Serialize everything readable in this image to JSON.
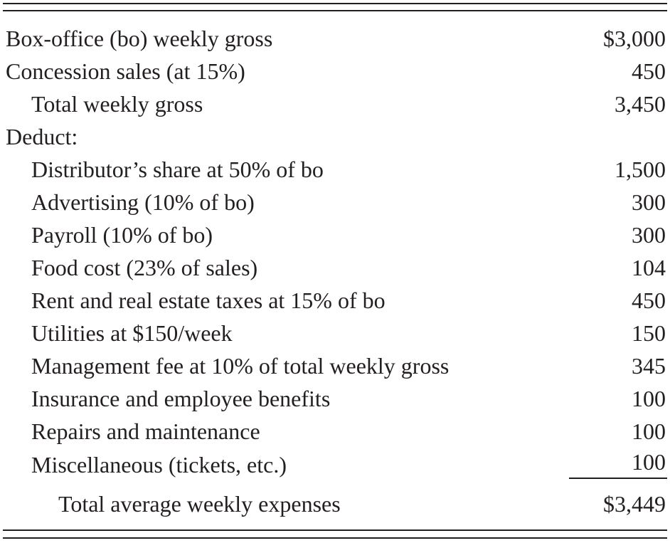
{
  "table": {
    "rows": [
      {
        "label": "Box-office (bo) weekly gross",
        "value": "$3,000"
      },
      {
        "label": "Concession sales (at 15%)",
        "value": "450"
      },
      {
        "label": "Total weekly gross",
        "value": "3,450"
      },
      {
        "label": "Deduct:",
        "value": ""
      },
      {
        "label": "Distributor’s share at 50% of bo",
        "value": "1,500"
      },
      {
        "label": "Advertising (10% of bo)",
        "value": "300"
      },
      {
        "label": "Payroll (10% of bo)",
        "value": "300"
      },
      {
        "label": "Food cost (23% of sales)",
        "value": "104"
      },
      {
        "label": "Rent and real estate taxes at 15% of bo",
        "value": "450"
      },
      {
        "label": "Utilities at $150/week",
        "value": "150"
      },
      {
        "label": "Management fee at 10% of total weekly gross",
        "value": "345"
      },
      {
        "label": "Insurance and employee benefits",
        "value": "100"
      },
      {
        "label": "Repairs and maintenance",
        "value": "100"
      },
      {
        "label": "Miscellaneous (tickets, etc.)",
        "value": "100"
      }
    ],
    "total": {
      "label": "Total average weekly expenses",
      "value": "$3,449"
    }
  }
}
